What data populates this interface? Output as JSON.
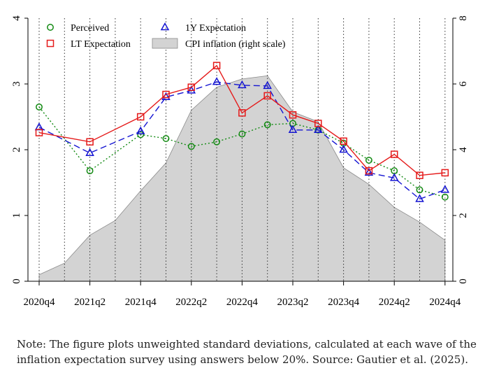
{
  "note": "Note: The figure plots unweighted standard deviations, calculated at each wave of the inflation expectation survey using answers below 20%. Source: Gautier et al. (2025).",
  "chart_data": {
    "type": "line",
    "categories": [
      "2020q4",
      "2021q1",
      "2021q2",
      "2021q3",
      "2021q4",
      "2022q1",
      "2022q2",
      "2022q3",
      "2022q4",
      "2023q1",
      "2023q2",
      "2023q3",
      "2023q4",
      "2024q1",
      "2024q2",
      "2024q3",
      "2024q4"
    ],
    "x_tick_labels": [
      "2020q4",
      "2021q2",
      "2021q4",
      "2022q2",
      "2022q4",
      "2023q2",
      "2023q4",
      "2024q2",
      "2024q4"
    ],
    "y_left": {
      "range": [
        0,
        4
      ],
      "ticks": [
        0,
        1,
        2,
        3,
        4
      ]
    },
    "y_right": {
      "range": [
        0,
        8
      ],
      "ticks": [
        0,
        2,
        4,
        6,
        8
      ]
    },
    "legend_position": "top-left, two columns",
    "series": [
      {
        "name": "Perceived",
        "axis": "left",
        "color": "#138a13",
        "marker": "circle",
        "dash": "dotted",
        "values": [
          2.65,
          null,
          1.68,
          null,
          2.23,
          2.17,
          2.05,
          2.12,
          2.24,
          2.38,
          2.4,
          2.3,
          2.1,
          1.84,
          1.68,
          1.39,
          1.28
        ]
      },
      {
        "name": "1Y Expectation",
        "axis": "left",
        "color": "#1414d2",
        "marker": "triangle",
        "dash": "longdash",
        "values": [
          2.34,
          null,
          1.95,
          null,
          2.28,
          2.8,
          2.9,
          3.03,
          2.98,
          2.97,
          2.3,
          2.3,
          2.0,
          1.65,
          1.57,
          1.25,
          1.39
        ]
      },
      {
        "name": "LT Expectation",
        "axis": "left",
        "color": "#e51a1a",
        "marker": "square",
        "dash": "solid",
        "values": [
          2.26,
          null,
          2.12,
          null,
          2.5,
          2.84,
          2.95,
          3.28,
          2.56,
          2.82,
          2.53,
          2.4,
          2.13,
          1.68,
          1.93,
          1.61,
          1.65
        ]
      },
      {
        "name": "CPI inflation (right scale)",
        "axis": "right",
        "color": "#d3d3d3",
        "type": "area",
        "values": [
          0.2,
          0.55,
          1.4,
          1.85,
          2.75,
          3.6,
          5.2,
          5.9,
          6.15,
          6.25,
          5.15,
          4.85,
          3.45,
          2.95,
          2.25,
          1.8,
          1.25
        ]
      }
    ]
  }
}
